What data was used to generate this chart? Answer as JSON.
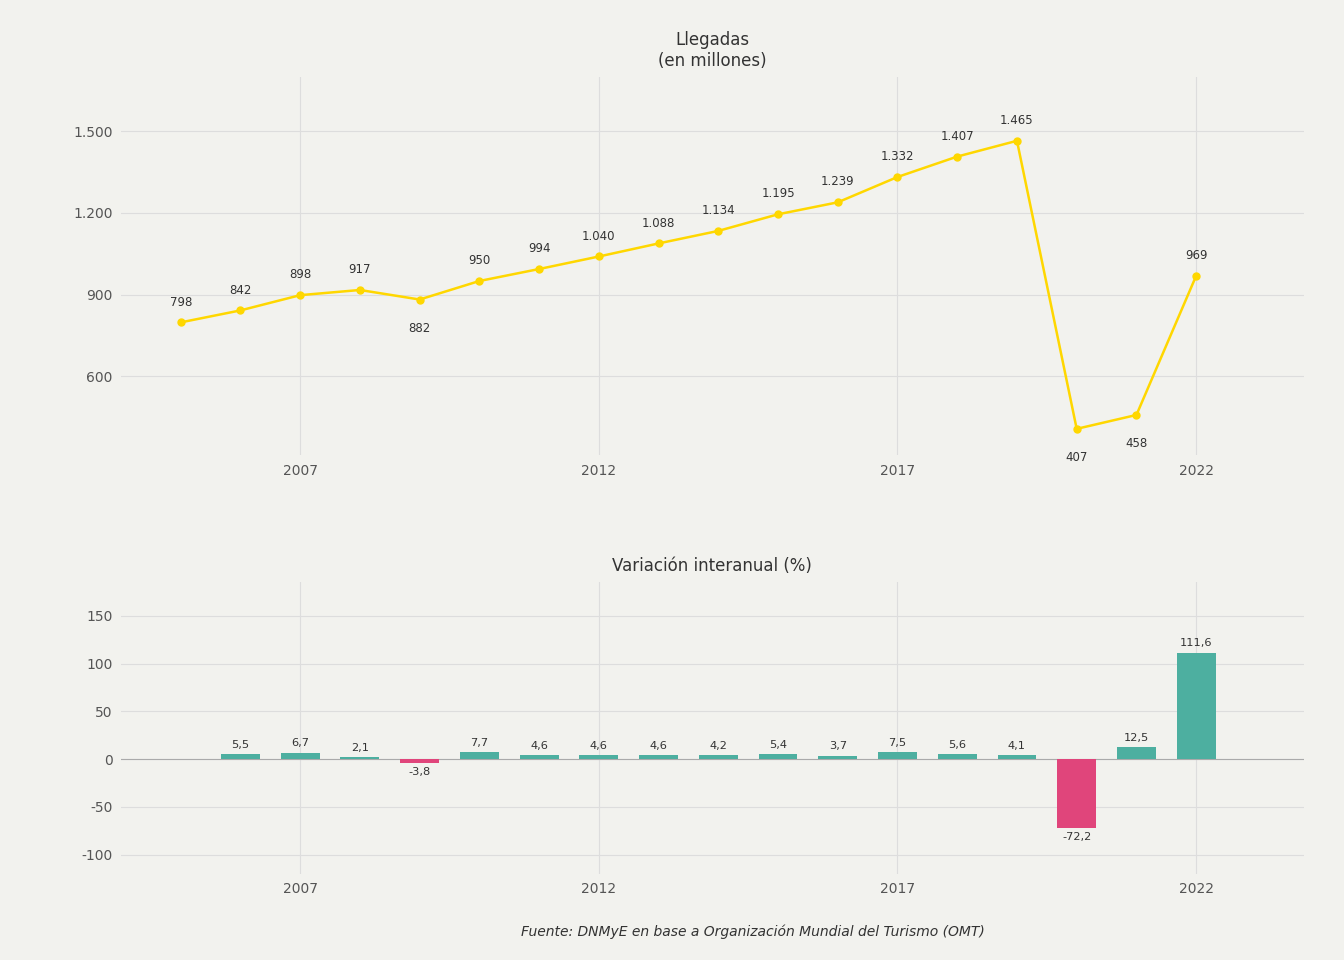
{
  "years": [
    2005,
    2006,
    2007,
    2008,
    2009,
    2010,
    2011,
    2012,
    2013,
    2014,
    2015,
    2016,
    2017,
    2018,
    2019,
    2020,
    2021,
    2022
  ],
  "arrivals": [
    798,
    842,
    898,
    917,
    882,
    950,
    994,
    1040,
    1088,
    1134,
    1195,
    1239,
    1332,
    1407,
    1465,
    407,
    458,
    969
  ],
  "variation": [
    null,
    5.5,
    6.7,
    2.1,
    -3.8,
    7.7,
    4.6,
    4.6,
    4.6,
    4.2,
    5.4,
    3.7,
    7.5,
    5.6,
    4.1,
    -72.2,
    12.5,
    111.6
  ],
  "line_color": "#FFD700",
  "bar_color_positive": "#4DAFA0",
  "bar_color_negative": "#E0457B",
  "background_color": "#F2F2EE",
  "grid_color": "#DDDDDD",
  "title_arrivals": "Llegadas\n(en millones)",
  "title_variation": "Variación interanual (%)",
  "source_text": "Fuente: DNMyE en base a Organización Mundial del Turismo (OMT)",
  "yticks_arrivals": [
    600,
    900,
    1200,
    1500
  ],
  "yticks_variation": [
    -100,
    -50,
    0,
    50,
    100,
    150
  ],
  "xticks": [
    2007,
    2012,
    2017,
    2022
  ],
  "ylim_arrivals": [
    310,
    1700
  ],
  "ylim_variation": [
    -120,
    185
  ]
}
